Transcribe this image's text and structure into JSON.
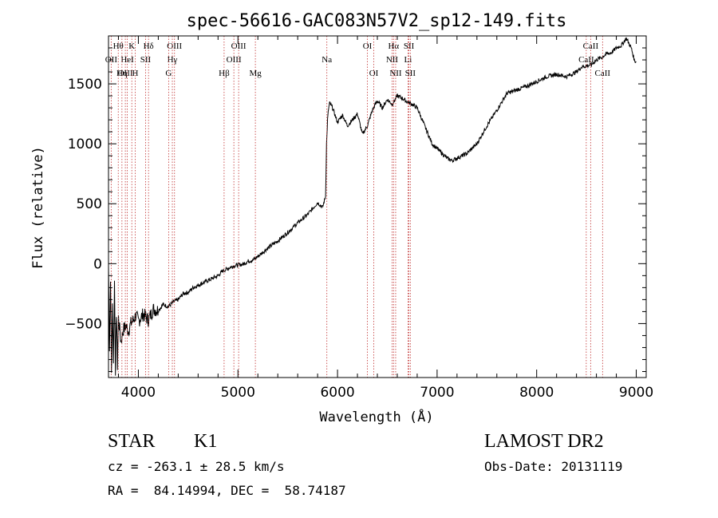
{
  "chart_data": {
    "type": "line",
    "title": "spec-56616-GAC083N57V2_sp12-149.fits",
    "xlabel": "Wavelength (Å)",
    "ylabel": "Flux (relative)",
    "xlim": [
      3700,
      9100
    ],
    "ylim": [
      -950,
      1900
    ],
    "x_ticks": [
      4000,
      5000,
      6000,
      7000,
      8000,
      9000
    ],
    "y_ticks": [
      -500,
      0,
      500,
      1000,
      1500
    ],
    "grid": false,
    "series": [
      {
        "x": [
          3700,
          3710,
          3720,
          3730,
          3740,
          3750,
          3760,
          3770,
          3780,
          3790,
          3800,
          3825,
          3850,
          3875,
          3900,
          3925,
          3950,
          3975,
          4000,
          4050,
          4100,
          4150,
          4200,
          4250,
          4300,
          4350,
          4400,
          4450,
          4500,
          4550,
          4600,
          4650,
          4700,
          4750,
          4800,
          4850,
          4900,
          4950,
          5000,
          5050,
          5100,
          5150,
          5200,
          5300,
          5400,
          5500,
          5600,
          5700,
          5800,
          5850,
          5880,
          5890,
          5900,
          5910,
          5920,
          5950,
          6000,
          6050,
          6100,
          6150,
          6200,
          6250,
          6300,
          6350,
          6400,
          6450,
          6500,
          6550,
          6600,
          6650,
          6700,
          6750,
          6800,
          6850,
          6900,
          6950,
          7000,
          7050,
          7100,
          7150,
          7200,
          7250,
          7300,
          7400,
          7500,
          7600,
          7700,
          7800,
          7900,
          8000,
          8100,
          8200,
          8300,
          8400,
          8450,
          8500,
          8550,
          8600,
          8650,
          8700,
          8750,
          8800,
          8850,
          8900,
          8950,
          8980,
          9000
        ],
        "y": [
          -20,
          -700,
          -100,
          -900,
          -350,
          -800,
          -150,
          -880,
          -400,
          -850,
          -450,
          -650,
          -550,
          -520,
          -560,
          -500,
          -470,
          -430,
          -480,
          -420,
          -470,
          -380,
          -390,
          -340,
          -360,
          -320,
          -300,
          -250,
          -240,
          -200,
          -180,
          -160,
          -140,
          -120,
          -100,
          -60,
          -40,
          -20,
          -10,
          -5,
          20,
          30,
          60,
          130,
          190,
          260,
          340,
          410,
          510,
          470,
          560,
          1000,
          1200,
          1290,
          1340,
          1300,
          1180,
          1240,
          1150,
          1200,
          1250,
          1080,
          1150,
          1280,
          1360,
          1300,
          1370,
          1330,
          1400,
          1380,
          1350,
          1330,
          1300,
          1200,
          1100,
          1000,
          960,
          920,
          880,
          860,
          880,
          900,
          920,
          1000,
          1150,
          1280,
          1420,
          1450,
          1480,
          1520,
          1560,
          1580,
          1560,
          1600,
          1640,
          1650,
          1660,
          1700,
          1720,
          1750,
          1760,
          1800,
          1820,
          1880,
          1800,
          1700,
          1680
        ]
      }
    ],
    "line_markers": [
      {
        "label": "Hθ",
        "x": 3798,
        "row": 0
      },
      {
        "label": "OII",
        "x": 3727,
        "row": 1
      },
      {
        "label": "OIII",
        "x": 3869,
        "row": 2
      },
      {
        "label": "K",
        "x": 3934,
        "row": 0
      },
      {
        "label": "HeI",
        "x": 3889,
        "row": 1
      },
      {
        "label": "Hη",
        "x": 3835,
        "row": 2
      },
      {
        "label": "Hδ",
        "x": 4102,
        "row": 0
      },
      {
        "label": "SII",
        "x": 4072,
        "row": 1
      },
      {
        "label": "H",
        "x": 3968,
        "row": 2
      },
      {
        "label": "OIII",
        "x": 4363,
        "row": 0
      },
      {
        "label": "Hγ",
        "x": 4341,
        "row": 1
      },
      {
        "label": "G",
        "x": 4304,
        "row": 2
      },
      {
        "label": "OIII",
        "x": 5007,
        "row": 0
      },
      {
        "label": "OIII",
        "x": 4959,
        "row": 1
      },
      {
        "label": "Hβ",
        "x": 4861,
        "row": 2
      },
      {
        "label": "Mg",
        "x": 5175,
        "row": 2
      },
      {
        "label": "Na",
        "x": 5893,
        "row": 1
      },
      {
        "label": "OI",
        "x": 6300,
        "row": 0
      },
      {
        "label": "OI",
        "x": 6364,
        "row": 2
      },
      {
        "label": "Hα",
        "x": 6563,
        "row": 0
      },
      {
        "label": "NII",
        "x": 6548,
        "row": 1
      },
      {
        "label": "NII",
        "x": 6584,
        "row": 2
      },
      {
        "label": "SII",
        "x": 6717,
        "row": 0
      },
      {
        "label": "Li",
        "x": 6708,
        "row": 1
      },
      {
        "label": "SII",
        "x": 6731,
        "row": 2
      },
      {
        "label": "CaII",
        "x": 8542,
        "row": 0
      },
      {
        "label": "CaII",
        "x": 8498,
        "row": 1
      },
      {
        "label": "CaII",
        "x": 8662,
        "row": 2
      }
    ]
  },
  "info": {
    "class_label": "STAR",
    "subclass_label": "K1",
    "survey_label": "LAMOST DR2",
    "cz_text": "cz = -263.1 ± 28.5 km/s",
    "obs_date_text": "Obs-Date: 20131119",
    "radec_text": "RA =  84.14994, DEC =  58.74187"
  }
}
